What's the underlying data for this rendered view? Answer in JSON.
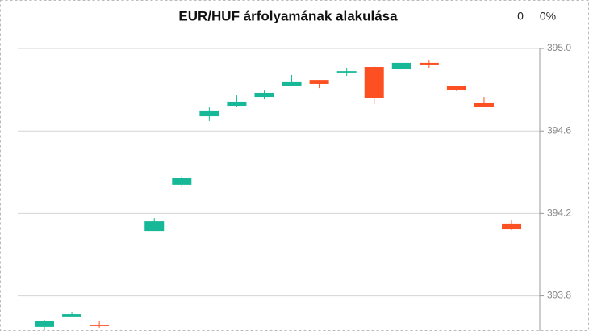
{
  "chart_data": {
    "type": "candlestick",
    "title": "EUR/HUF árfolyamának alakulása",
    "change": "0",
    "change_percent": "0%",
    "open": [
      393.65,
      393.697,
      393.661,
      null,
      394.115,
      394.339,
      394.671,
      394.722,
      394.765,
      394.82,
      394.847,
      394.883,
      394.91,
      394.902,
      394.93,
      394.82,
      394.738,
      394.151
    ],
    "high": [
      393.685,
      393.724,
      393.681,
      null,
      394.178,
      394.382,
      394.714,
      394.773,
      394.796,
      394.871,
      394.847,
      394.906,
      394.914,
      394.93,
      394.945,
      394.82,
      394.765,
      394.166
    ],
    "low": [
      393.634,
      393.697,
      393.646,
      null,
      394.115,
      394.327,
      394.648,
      394.718,
      394.753,
      394.82,
      394.808,
      394.867,
      394.73,
      394.898,
      394.906,
      394.793,
      394.718,
      394.119
    ],
    "close": [
      393.677,
      393.712,
      393.654,
      null,
      394.162,
      394.37,
      394.699,
      394.742,
      394.785,
      394.84,
      394.828,
      394.89,
      394.761,
      394.93,
      394.922,
      394.8,
      394.718,
      394.123
    ],
    "up_color": "#17b897",
    "down_color": "#fc5022",
    "ylim": [
      393.63,
      395.235
    ],
    "yticks": [
      393.8,
      394.2,
      394.6,
      {
        "value": 395,
        "label": "395.0"
      }
    ],
    "grid": true,
    "y_axis_side": "right"
  }
}
